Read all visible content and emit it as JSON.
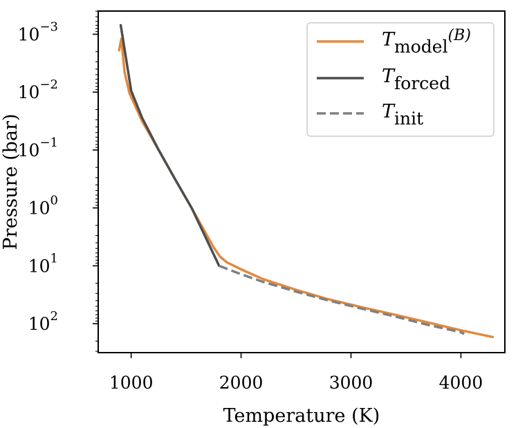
{
  "chart_data": {
    "type": "line",
    "xlabel": "Temperature (K)",
    "ylabel": "Pressure (bar)",
    "xlim": [
      700,
      4400
    ],
    "ylim_log10": [
      2.5,
      -3.4
    ],
    "yscale": "log",
    "yaxis_inverted": true,
    "grid": false,
    "legend_position": "top-right",
    "x_ticks": [
      {
        "value": 1000,
        "label": "1000"
      },
      {
        "value": 2000,
        "label": "2000"
      },
      {
        "value": 3000,
        "label": "3000"
      },
      {
        "value": 4000,
        "label": "4000"
      }
    ],
    "y_ticks": [
      {
        "exp": -3,
        "base": "10",
        "sup": "−3"
      },
      {
        "exp": -2,
        "base": "10",
        "sup": "−2"
      },
      {
        "exp": -1,
        "base": "10",
        "sup": "−1"
      },
      {
        "exp": 0,
        "base": "10",
        "sup": "0"
      },
      {
        "exp": 1,
        "base": "10",
        "sup": "1"
      },
      {
        "exp": 2,
        "base": "10",
        "sup": "2"
      }
    ],
    "series": [
      {
        "name": "T_model(B)",
        "legend_base": "T",
        "legend_sub": "model",
        "legend_extra": "(B)",
        "color": "#e08a3f",
        "dash": "solid",
        "x": [
          890,
          910,
          940,
          985,
          1100,
          1250,
          1400,
          1550,
          1650,
          1750,
          1810,
          1870,
          2000,
          2200,
          2500,
          2800,
          3100,
          3400,
          3700,
          4000,
          4290
        ],
        "y": [
          0.0019,
          0.0012,
          0.0045,
          0.0105,
          0.032,
          0.1,
          0.32,
          1.0,
          2.2,
          4.8,
          7.0,
          8.7,
          11.5,
          17,
          26,
          38,
          52,
          70,
          95,
          130,
          170
        ]
      },
      {
        "name": "T_forced",
        "legend_base": "T",
        "legend_sub": "forced",
        "legend_extra": "",
        "color": "#4d4d4d",
        "dash": "solid",
        "x": [
          905,
          1000,
          1100,
          1250,
          1400,
          1550,
          1800
        ],
        "y": [
          0.0007,
          0.0095,
          0.028,
          0.1,
          0.32,
          1.0,
          10.0
        ]
      },
      {
        "name": "T_init",
        "legend_base": "T",
        "legend_sub": "init",
        "legend_extra": "",
        "color": "#808080",
        "dash": "dashed",
        "x": [
          1800,
          2000,
          2200,
          2500,
          2800,
          3100,
          3400,
          3700,
          4000,
          4030
        ],
        "y": [
          10.0,
          14,
          19,
          28,
          40,
          55,
          75,
          105,
          140,
          150
        ]
      }
    ]
  }
}
